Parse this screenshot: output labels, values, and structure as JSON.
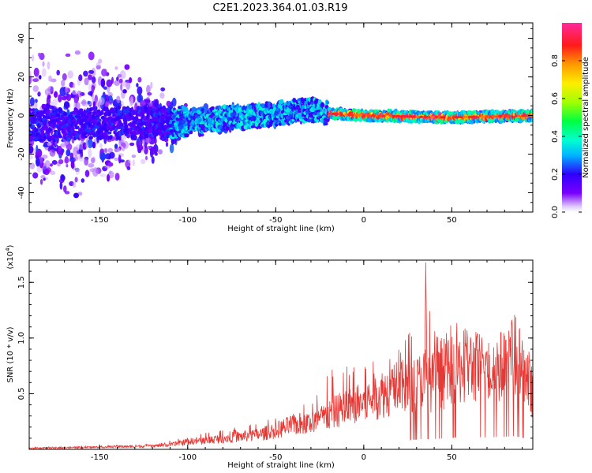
{
  "title": "C2E1.2023.364.01.03.R19",
  "chart_data": [
    {
      "type": "heatmap",
      "xlabel": "Height of straight line (km)",
      "ylabel": "Frequency (Hz)",
      "xlim": [
        -190,
        96
      ],
      "ylim": [
        -50,
        48
      ],
      "xticks": [
        -150,
        -100,
        -50,
        0,
        50
      ],
      "yticks": [
        -40,
        -20,
        0,
        20,
        40
      ],
      "grid": false,
      "colorbar": {
        "label": "Normalized spectral amplitude",
        "range": [
          0,
          1
        ],
        "ticks": [
          "0.0",
          "0.2",
          "0.4",
          "0.6",
          "0.8"
        ]
      },
      "description_points": {
        "center_line_freq": [
          [
            -190,
            -5
          ],
          [
            -150,
            -4
          ],
          [
            -100,
            -3
          ],
          [
            -60,
            0
          ],
          [
            -30,
            3
          ],
          [
            -20,
            1
          ],
          [
            0,
            0
          ],
          [
            50,
            -1
          ],
          [
            96,
            0
          ]
        ],
        "spread_hz": [
          [
            -190,
            48
          ],
          [
            -150,
            48
          ],
          [
            -120,
            25
          ],
          [
            -100,
            8
          ],
          [
            -60,
            7
          ],
          [
            -30,
            6
          ],
          [
            -20,
            2
          ],
          [
            96,
            2
          ]
        ]
      }
    },
    {
      "type": "line",
      "xlabel": "Height of straight line (km)",
      "ylabel": "SNR (10 * v/v)",
      "y_multiplier_label": "(x10^4)",
      "xlim": [
        -190,
        96
      ],
      "ylim": [
        0,
        1.7
      ],
      "xticks": [
        -150,
        -100,
        -50,
        0,
        50
      ],
      "yticks": [
        0.5,
        1.0,
        1.5
      ],
      "series": [
        {
          "color": "#e53935",
          "envelope": {
            "x": [
              -190,
              -150,
              -120,
              -110,
              -100,
              -90,
              -80,
              -60,
              -50,
              -40,
              -30,
              -20,
              -15,
              -10,
              0,
              10,
              20,
              30,
              35,
              38,
              45,
              50,
              60,
              70,
              80,
              85,
              90,
              96
            ],
            "mean": [
              0.01,
              0.02,
              0.03,
              0.04,
              0.07,
              0.08,
              0.1,
              0.13,
              0.17,
              0.22,
              0.24,
              0.3,
              0.35,
              0.38,
              0.42,
              0.5,
              0.55,
              0.58,
              0.65,
              0.6,
              0.65,
              0.7,
              0.75,
              0.72,
              0.75,
              0.8,
              0.7,
              0.5
            ],
            "peak": [
              0.02,
              0.03,
              0.05,
              0.08,
              0.12,
              0.15,
              0.18,
              0.24,
              0.3,
              0.4,
              0.45,
              0.85,
              0.6,
              0.8,
              0.75,
              0.85,
              0.95,
              1.25,
              1.68,
              1.3,
              1.0,
              1.15,
              1.1,
              1.05,
              1.2,
              1.32,
              1.0,
              0.95
            ]
          }
        }
      ]
    }
  ]
}
